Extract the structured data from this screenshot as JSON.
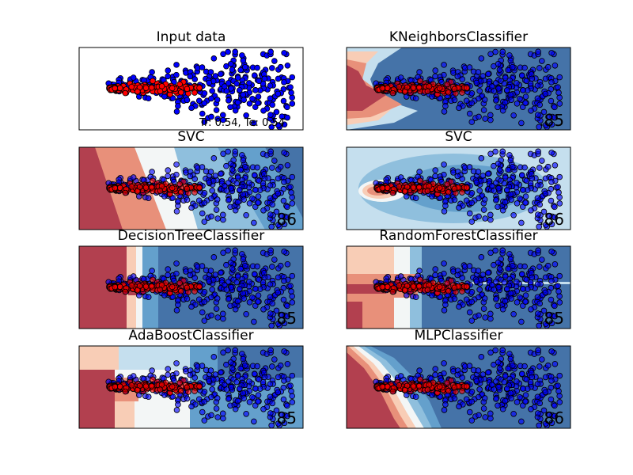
{
  "chart_data": [
    {
      "type": "scatter",
      "title": "Input data",
      "annotation": "Tr: 0.54, Te: 0.54",
      "score": "",
      "background": "none",
      "classes": [
        "red",
        "blue"
      ]
    },
    {
      "type": "scatter",
      "title": "KNeighborsClassifier",
      "score": ".85",
      "background": "knn"
    },
    {
      "type": "scatter",
      "title": "SVC",
      "score": ".86",
      "background": "linear"
    },
    {
      "type": "scatter",
      "title": "SVC",
      "score": ".86",
      "background": "rbf"
    },
    {
      "type": "scatter",
      "title": "DecisionTreeClassifier",
      "score": ".85",
      "background": "tree"
    },
    {
      "type": "scatter",
      "title": "RandomForestClassifier",
      "score": ".85",
      "background": "forest"
    },
    {
      "type": "scatter",
      "title": "AdaBoostClassifier",
      "score": ".85",
      "background": "ada"
    },
    {
      "type": "scatter",
      "title": "MLPClassifier",
      "score": ".86",
      "background": "mlp"
    }
  ],
  "colors": {
    "class_red": "#ff0000",
    "class_blue": "#0000ff",
    "region_dark_red": "#b2404f",
    "region_red": "#e8907a",
    "region_light_red": "#f8cdb6",
    "region_white": "#f3f6f6",
    "region_light_blue": "#c5dfee",
    "region_mid_blue": "#8fbfdd",
    "region_blue": "#64a0cc",
    "region_dark_blue": "#4573a8"
  }
}
